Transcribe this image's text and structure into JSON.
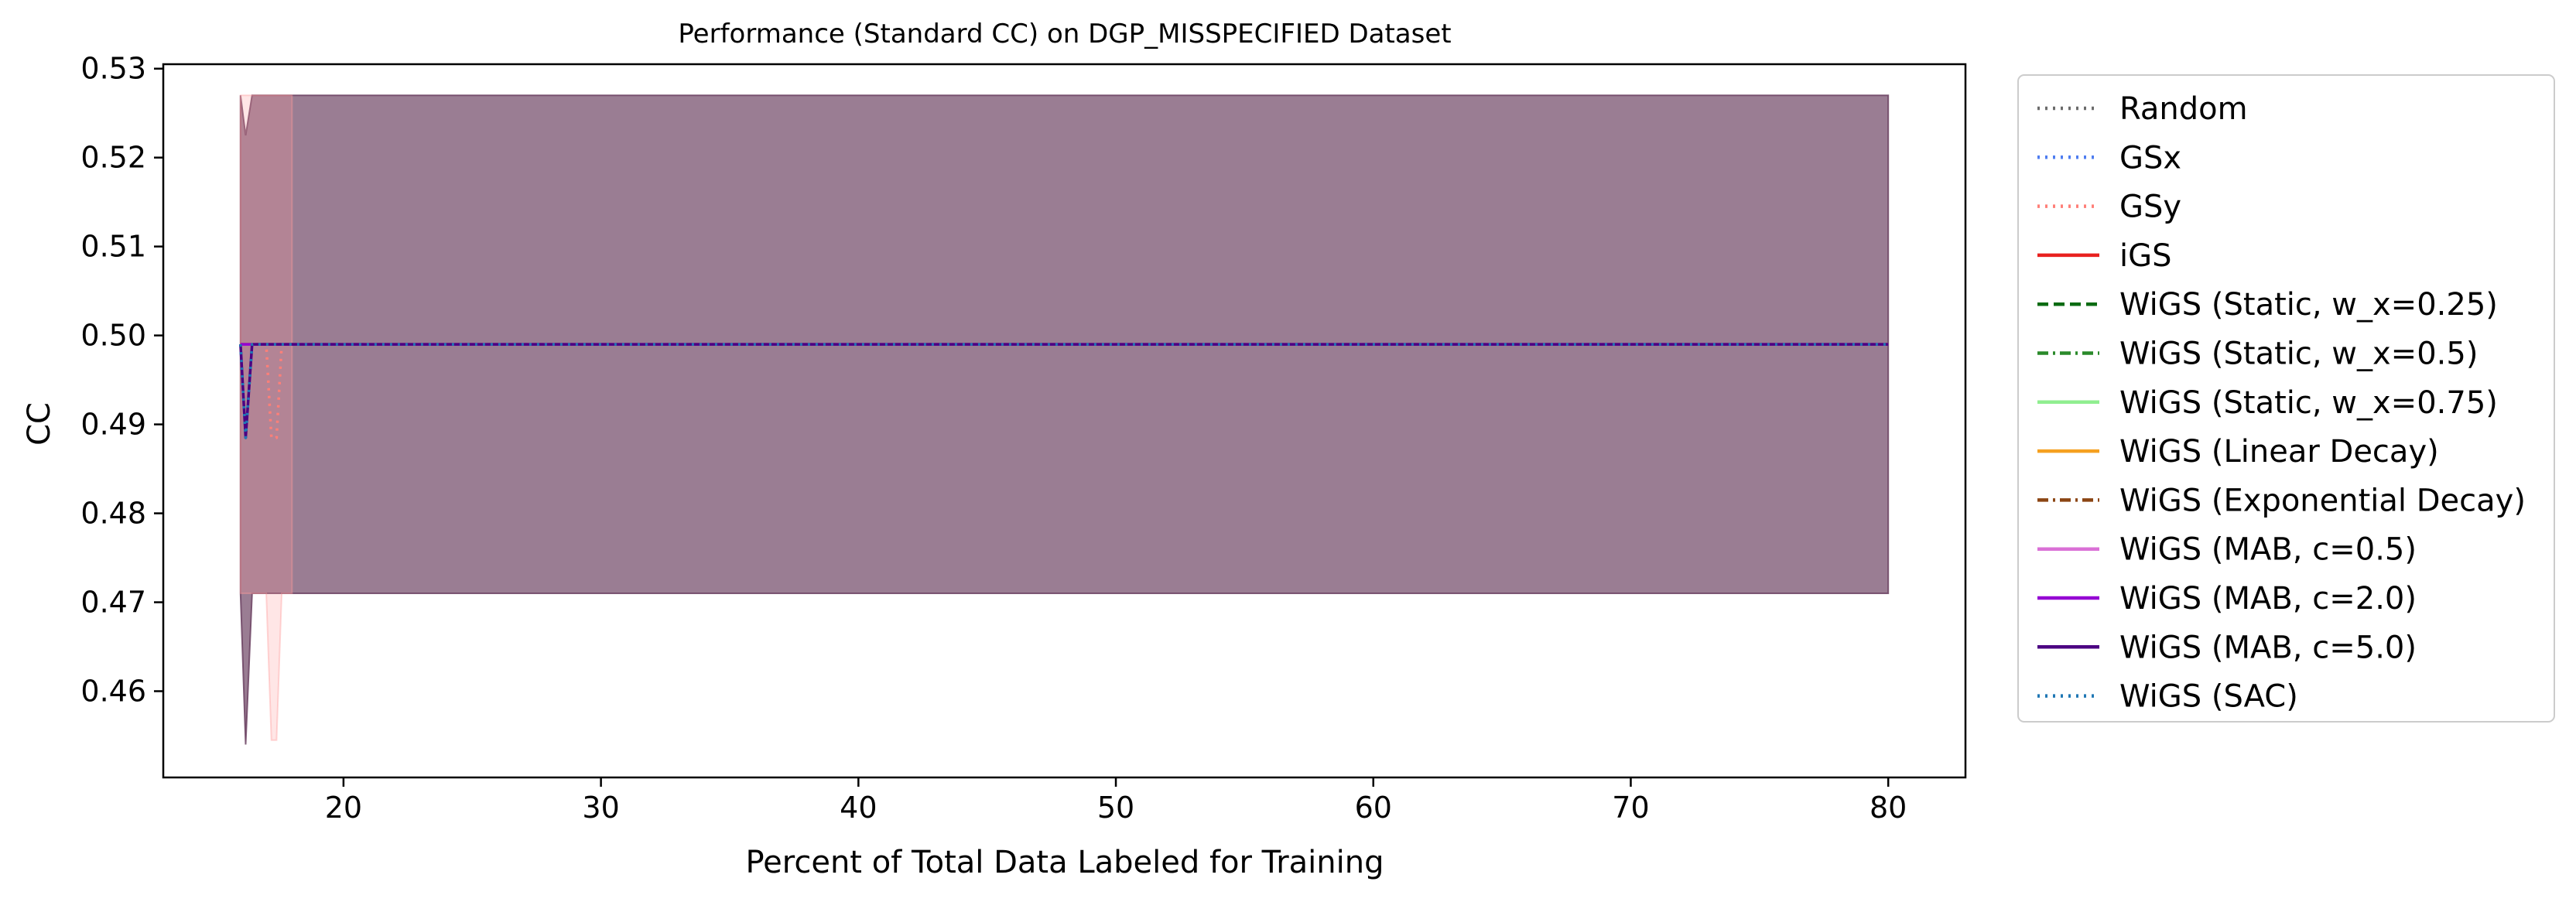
{
  "chart_data": {
    "type": "line",
    "title": "Performance (Standard CC) on DGP_MISSPECIFIED Dataset",
    "xlabel": "Percent of Total Data Labeled for Training",
    "ylabel": "CC",
    "xlim": [
      13,
      83
    ],
    "ylim": [
      0.4503,
      0.5305
    ],
    "xticks": [
      20,
      30,
      40,
      50,
      60,
      70,
      80
    ],
    "xtick_labels": [
      "20",
      "30",
      "40",
      "50",
      "60",
      "70",
      "80"
    ],
    "yticks": [
      0.46,
      0.47,
      0.48,
      0.49,
      0.5,
      0.51,
      0.52,
      0.53
    ],
    "ytick_labels": [
      "0.46",
      "0.47",
      "0.48",
      "0.49",
      "0.50",
      "0.51",
      "0.52",
      "0.53"
    ],
    "grid": false,
    "legend_position": "outside right",
    "bands": [
      {
        "name": "main band",
        "color": "#6a4060",
        "opacity": 0.68,
        "x": [
          16,
          16.2,
          16.45,
          80
        ],
        "lower": [
          0.471,
          0.454,
          0.471,
          0.471
        ],
        "upper": [
          0.527,
          0.5225,
          0.527,
          0.527
        ]
      },
      {
        "name": "GSy band",
        "color": "#ff9a9a",
        "opacity": 0.25,
        "x": [
          16,
          17,
          17.2,
          17.4,
          17.6,
          18
        ],
        "lower": [
          0.471,
          0.471,
          0.4545,
          0.4545,
          0.471,
          0.471
        ],
        "upper": [
          0.527,
          0.527,
          0.527,
          0.527,
          0.527,
          0.527
        ]
      }
    ],
    "series": [
      {
        "name": "Random",
        "color": "#6b6b6b",
        "dash": "3,7",
        "x": [
          16,
          16.2,
          16.45,
          80
        ],
        "values": [
          0.499,
          0.4885,
          0.499,
          0.499
        ]
      },
      {
        "name": "GSx",
        "color": "#4f7df0",
        "dash": "3,7",
        "x": [
          16,
          16.2,
          16.45,
          80
        ],
        "values": [
          0.499,
          0.4885,
          0.499,
          0.499
        ]
      },
      {
        "name": "GSy",
        "color": "#ff7f78",
        "dash": "3,7",
        "x": [
          16,
          17,
          17.2,
          17.4,
          17.6,
          80
        ],
        "values": [
          0.499,
          0.499,
          0.4885,
          0.4885,
          0.499,
          0.499
        ]
      },
      {
        "name": "iGS",
        "color": "#e8211f",
        "dash": "",
        "x": [
          16,
          80
        ],
        "values": [
          0.499,
          0.499
        ]
      },
      {
        "name": "WiGS (Static, w_x=0.25)",
        "color": "#0a6b12",
        "dash": "14,7",
        "x": [
          16,
          80
        ],
        "values": [
          0.499,
          0.499
        ]
      },
      {
        "name": "WiGS (Static, w_x=0.5)",
        "color": "#2a8a2a",
        "dash": "14,6,3,6",
        "x": [
          16,
          80
        ],
        "values": [
          0.499,
          0.499
        ]
      },
      {
        "name": "WiGS (Static, w_x=0.75)",
        "color": "#90ee90",
        "dash": "",
        "x": [
          16,
          80
        ],
        "values": [
          0.499,
          0.499
        ]
      },
      {
        "name": "WiGS (Linear Decay)",
        "color": "#f5a020",
        "dash": "",
        "x": [
          16,
          80
        ],
        "values": [
          0.499,
          0.499
        ]
      },
      {
        "name": "WiGS (Exponential Decay)",
        "color": "#8b4513",
        "dash": "14,6,3,6",
        "x": [
          16,
          80
        ],
        "values": [
          0.499,
          0.499
        ]
      },
      {
        "name": "WiGS (MAB, c=0.5)",
        "color": "#da70d6",
        "dash": "",
        "x": [
          16,
          80
        ],
        "values": [
          0.499,
          0.499
        ]
      },
      {
        "name": "WiGS (MAB, c=2.0)",
        "color": "#9400d3",
        "dash": "",
        "x": [
          16,
          80
        ],
        "values": [
          0.499,
          0.499
        ]
      },
      {
        "name": "WiGS (MAB, c=5.0)",
        "color": "#4b0082",
        "dash": "",
        "x": [
          16,
          16.2,
          16.45,
          80
        ],
        "values": [
          0.499,
          0.4885,
          0.499,
          0.499
        ]
      },
      {
        "name": "WiGS (SAC)",
        "color": "#1f77b4",
        "dash": "3,7",
        "x": [
          16,
          16.2,
          16.45,
          80
        ],
        "values": [
          0.499,
          0.4885,
          0.499,
          0.499
        ]
      }
    ]
  }
}
